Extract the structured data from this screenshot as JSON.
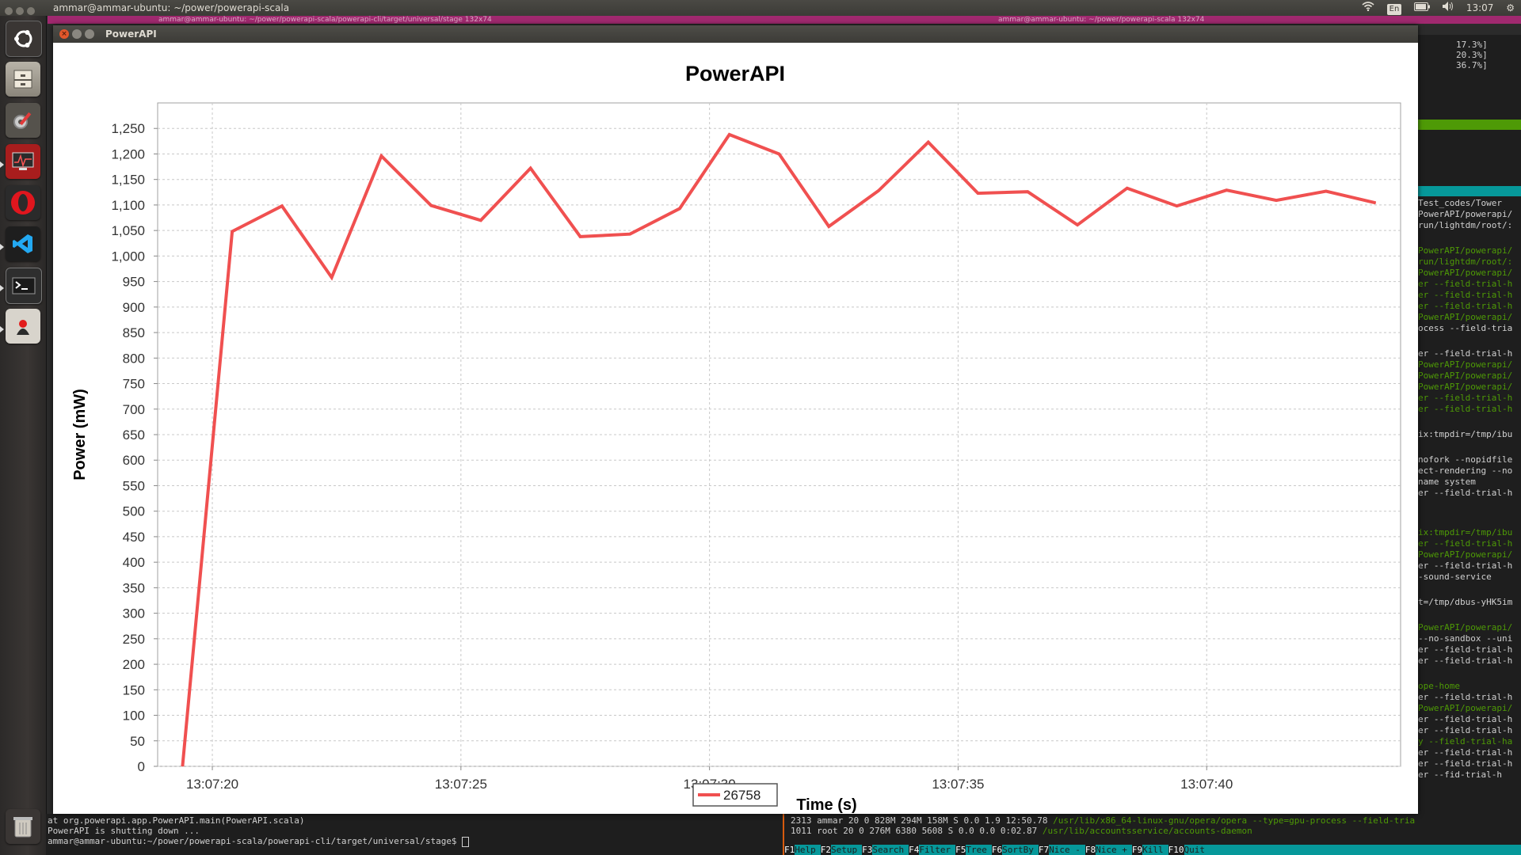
{
  "top_panel": {
    "title": "ammar@ammar-ubuntu: ~/power/powerapi-scala",
    "lang": "En",
    "time": "13:07"
  },
  "term_strip": {
    "left_text": "ammar@ammar-ubuntu: ~/power/powerapi-scala/powerapi-cli/target/universal/stage 132x74",
    "right_text": "ammar@ammar-ubuntu: ~/power/powerapi-scala 132x74"
  },
  "launcher": {
    "items": [
      {
        "name": "dash",
        "icon": "ubuntu-logo-icon"
      },
      {
        "name": "files",
        "icon": "file-cabinet-icon"
      },
      {
        "name": "system-settings",
        "icon": "settings-tools-icon"
      },
      {
        "name": "system-monitor",
        "icon": "system-monitor-icon"
      },
      {
        "name": "opera",
        "icon": "opera-icon"
      },
      {
        "name": "vscode",
        "icon": "vscode-icon"
      },
      {
        "name": "terminal",
        "icon": "terminal-icon"
      },
      {
        "name": "java",
        "icon": "java-icon"
      },
      {
        "name": "trash",
        "icon": "trash-icon"
      }
    ]
  },
  "window": {
    "title": "PowerAPI"
  },
  "chart_data": {
    "type": "line",
    "title": "PowerAPI",
    "xlabel": "Time (s)",
    "ylabel": "Power (mW)",
    "x_tick_labels": [
      "13:07:20",
      "13:07:25",
      "13:07:30",
      "13:07:35",
      "13:07:40"
    ],
    "x_tick_seconds": [
      20,
      25,
      30,
      35,
      40
    ],
    "xlim_seconds": [
      18.9,
      43.9
    ],
    "ylim": [
      0,
      1300
    ],
    "y_ticks": [
      "0",
      "50",
      "100",
      "150",
      "200",
      "250",
      "300",
      "350",
      "400",
      "450",
      "500",
      "550",
      "600",
      "650",
      "700",
      "750",
      "800",
      "850",
      "900",
      "950",
      "1,000",
      "1,050",
      "1,100",
      "1,150",
      "1,200",
      "1,250"
    ],
    "grid": true,
    "legend_position": "bottom-center",
    "series": [
      {
        "name": "26758",
        "color": "#f05050",
        "x_seconds": [
          19.4,
          20.4,
          21.4,
          22.4,
          23.4,
          24.4,
          25.4,
          26.4,
          27.4,
          28.4,
          29.4,
          30.4,
          31.4,
          32.4,
          33.4,
          34.4,
          35.4,
          36.4,
          37.4,
          38.4,
          39.4,
          40.4,
          41.4,
          42.4,
          43.4
        ],
        "values": [
          0,
          1048,
          1098,
          958,
          1196,
          1099,
          1070,
          1172,
          1038,
          1043,
          1093,
          1238,
          1200,
          1058,
          1128,
          1223,
          1123,
          1126,
          1061,
          1133,
          1098,
          1129,
          1109,
          1127,
          1104
        ]
      }
    ]
  },
  "right_term": {
    "cpu": [
      "17.3%]",
      "20.3%]",
      "36.7%]"
    ],
    "lines": [
      {
        "t": "Test_codes/Tower",
        "g": false
      },
      {
        "t": "PowerAPI/powerapi/",
        "g": false
      },
      {
        "t": "run/lightdm/root/:",
        "g": false
      },
      {
        "t": "PowerAPI/powerapi/",
        "g": true
      },
      {
        "t": "run/lightdm/root/:",
        "g": true
      },
      {
        "t": "PowerAPI/powerapi/",
        "g": true
      },
      {
        "t": "er --field-trial-h",
        "g": true
      },
      {
        "t": "er --field-trial-h",
        "g": true
      },
      {
        "t": "er --field-trial-h",
        "g": true
      },
      {
        "t": "PowerAPI/powerapi/",
        "g": true
      },
      {
        "t": "ocess --field-tria",
        "g": false
      },
      {
        "t": "er --field-trial-h",
        "g": false
      },
      {
        "t": "PowerAPI/powerapi/",
        "g": true
      },
      {
        "t": "PowerAPI/powerapi/",
        "g": true
      },
      {
        "t": "PowerAPI/powerapi/",
        "g": true
      },
      {
        "t": "er --field-trial-h",
        "g": true
      },
      {
        "t": "er --field-trial-h",
        "g": true
      },
      {
        "t": "ix:tmpdir=/tmp/ibu",
        "g": false
      },
      {
        "t": "nofork --nopidfile",
        "g": false
      },
      {
        "t": "ect-rendering --no",
        "g": false
      },
      {
        "t": "name system",
        "g": false
      },
      {
        "t": "er --field-trial-h",
        "g": false
      },
      {
        "t": "ix:tmpdir=/tmp/ibu",
        "g": true
      },
      {
        "t": "er --field-trial-h",
        "g": true
      },
      {
        "t": "PowerAPI/powerapi/",
        "g": true
      },
      {
        "t": "er --field-trial-h",
        "g": false
      },
      {
        "t": "-sound-service",
        "g": false
      },
      {
        "t": "t=/tmp/dbus-yHK5im",
        "g": false
      },
      {
        "t": "PowerAPI/powerapi/",
        "g": true
      },
      {
        "t": "--no-sandbox --uni",
        "g": false
      },
      {
        "t": "er --field-trial-h",
        "g": false
      },
      {
        "t": "er --field-trial-h",
        "g": false
      },
      {
        "t": "ope-home",
        "g": true
      },
      {
        "t": "er --field-trial-h",
        "g": false
      },
      {
        "t": "PowerAPI/powerapi/",
        "g": true
      },
      {
        "t": "er --field-trial-h",
        "g": false
      },
      {
        "t": "er --field-trial-h",
        "g": false
      },
      {
        "t": "y --field-trial-ha",
        "g": true
      },
      {
        "t": "er --field-trial-h",
        "g": false
      },
      {
        "t": "er --field-trial-h",
        "g": false
      },
      {
        "t": "er --fid-trial-h",
        "g": false
      }
    ]
  },
  "bottom_left_term": {
    "line1": "        at org.powerapi.app.PowerAPI.main(PowerAPI.scala)",
    "line2": "PowerAPI is shutting down ...",
    "line3": "ammar@ammar-ubuntu:~/power/powerapi-scala/powerapi-cli/target/universal/stage$ "
  },
  "bottom_right_term": {
    "row1_stats": "2313 ammar      20   0  828M  294M  158M S  0.0  1.9 12:50.78 ",
    "row1_cmd": "/usr/lib/x86_64-linux-gnu/opera/opera --type=gpu-process --field-tria",
    "row2_stats": "1011 root       20   0  276M  6380  5608 S  0.0  0.0  0:02.87 ",
    "row2_cmd": "/usr/lib/accountsservice/accounts-daemon",
    "fkeys": [
      {
        "k": "F1",
        "l": "Help"
      },
      {
        "k": "F2",
        "l": "Setup"
      },
      {
        "k": "F3",
        "l": "Search"
      },
      {
        "k": "F4",
        "l": "Filter"
      },
      {
        "k": "F5",
        "l": "Tree"
      },
      {
        "k": "F6",
        "l": "SortBy"
      },
      {
        "k": "F7",
        "l": "Nice -"
      },
      {
        "k": "F8",
        "l": "Nice +"
      },
      {
        "k": "F9",
        "l": "Kill"
      },
      {
        "k": "F10",
        "l": "Quit"
      }
    ]
  }
}
